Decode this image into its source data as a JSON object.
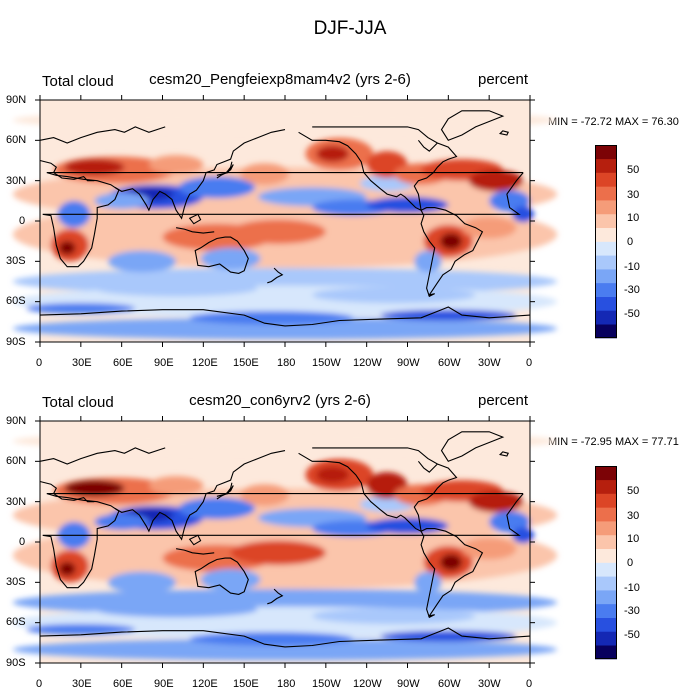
{
  "figure": {
    "title": "DJF-JJA"
  },
  "y_ticks": [
    "90N",
    "60N",
    "30N",
    "0",
    "30S",
    "60S",
    "90S"
  ],
  "x_ticks": [
    "0",
    "30E",
    "60E",
    "90E",
    "120E",
    "150E",
    "180",
    "150W",
    "120W",
    "90W",
    "60W",
    "30W",
    "0"
  ],
  "colorbar_labels": [
    "50",
    "30",
    "10",
    "0",
    "-10",
    "-30",
    "-50"
  ],
  "colors": {
    "levels": [
      "#08005e",
      "#1428b4",
      "#2850e0",
      "#4a7cf0",
      "#7aa6f6",
      "#a9c8fb",
      "#d7e7fc",
      "#fde9dc",
      "#fbc5ab",
      "#f59c79",
      "#ec6f4b",
      "#dc4526",
      "#b61f0e",
      "#7c0306"
    ],
    "coastline": "#000000"
  },
  "panels": [
    {
      "left_label": "Total cloud",
      "center_label": "cesm20_Pengfeiexp8mam4v2 (yrs 2-6)",
      "right_label": "percent",
      "stats": "MIN = -72.72 MAX =  76.30"
    },
    {
      "left_label": "Total cloud",
      "center_label": "cesm20_con6yrv2 (yrs 2-6)",
      "right_label": "percent",
      "stats": "MIN = -72.95 MAX =  77.71"
    }
  ]
}
